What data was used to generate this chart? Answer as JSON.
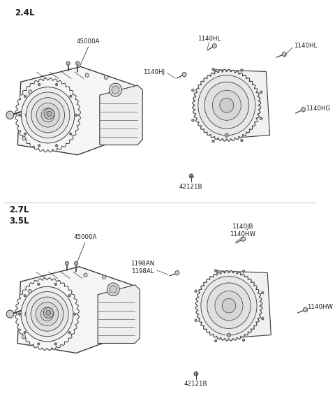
{
  "background_color": "#ffffff",
  "fig_width": 4.8,
  "fig_height": 5.97,
  "dpi": 100,
  "line_color": "#3a3a3a",
  "text_color": "#1a1a1a",
  "label_fontsize": 6.2,
  "engine_label_fontsize": 8.5,
  "labels": {
    "top_engine": "2.4L",
    "bottom_engine1": "2.7L",
    "bottom_engine2": "3.5L",
    "top_assy": "45000A",
    "bottom_assy": "45000A",
    "lbl_1140HJ": "1140HJ",
    "lbl_1140HL_top": "1140HL",
    "lbl_1140HL_right": "1140HL",
    "lbl_1140HG": "1140HG",
    "lbl_42121B_top": "42121B",
    "lbl_1198AN": "1198AN\n1198AL",
    "lbl_1140JB": "1140JB\n1140HW",
    "lbl_1140HW": "1140HW",
    "lbl_42121B_bot": "42121B"
  }
}
